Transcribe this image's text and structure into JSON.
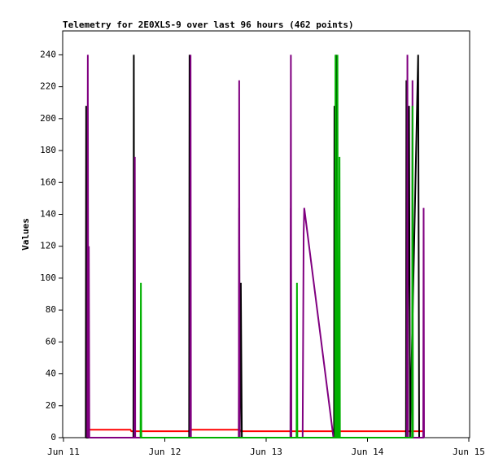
{
  "chart_data": {
    "type": "line",
    "title": "Telemetry for 2E0XLS-9 over last 96 hours (462 points)",
    "y_label": "Values",
    "xlim": [
      -0.008,
      4.008
    ],
    "xticks": [
      {
        "value": 0,
        "label": "Jun 11"
      },
      {
        "value": 1,
        "label": "Jun 12"
      },
      {
        "value": 2,
        "label": "Jun 13"
      },
      {
        "value": 3,
        "label": "Jun 14"
      },
      {
        "value": 4,
        "label": "Jun 15"
      }
    ],
    "ylim": [
      0,
      255
    ],
    "yticks": [
      0,
      20,
      40,
      60,
      80,
      100,
      120,
      140,
      160,
      180,
      200,
      220,
      240
    ],
    "series": [
      {
        "color": "#ff0000",
        "x": [
          0.25,
          0.66,
          0.67,
          1.24,
          1.25,
          1.74,
          1.75,
          3.55
        ],
        "values": [
          5,
          5,
          4,
          4,
          5,
          5,
          4,
          4
        ]
      },
      {
        "color": "#000000",
        "x": [
          0.22,
          0.224,
          0.228,
          0.69,
          0.694,
          0.698,
          1.24,
          1.244,
          1.248,
          1.73,
          1.734,
          1.74,
          1.75,
          1.76,
          2.24,
          2.244,
          2.248,
          2.67,
          2.674,
          2.68,
          2.69,
          2.7,
          3.38,
          3.384,
          3.39,
          3.41,
          3.42,
          3.5,
          3.51
        ],
        "values": [
          0,
          208,
          0,
          0,
          240,
          0,
          0,
          240,
          0,
          0,
          144,
          0,
          97,
          0,
          0,
          144,
          0,
          0,
          208,
          0,
          240,
          0,
          0,
          224,
          0,
          208,
          0,
          240,
          0
        ]
      },
      {
        "color": "#800080",
        "x": [
          0.235,
          0.24,
          0.245,
          0.25,
          0.255,
          0.7,
          0.704,
          0.708,
          1.25,
          1.254,
          1.258,
          1.73,
          1.734,
          1.738,
          2.24,
          2.244,
          2.248,
          2.36,
          2.37,
          2.376,
          2.664,
          3.39,
          3.394,
          3.398,
          3.44,
          3.444,
          3.448,
          3.55,
          3.554,
          3.558
        ],
        "values": [
          0,
          240,
          0,
          120,
          0,
          0,
          176,
          0,
          0,
          240,
          0,
          0,
          224,
          0,
          0,
          240,
          0,
          0,
          128,
          144,
          0,
          0,
          240,
          0,
          0,
          224,
          0,
          0,
          144,
          0
        ]
      },
      {
        "color": "#00b000",
        "x": [
          0.76,
          0.764,
          0.768,
          2.3,
          2.304,
          2.308,
          2.68,
          2.684,
          2.688,
          2.7,
          2.704,
          2.708,
          2.72,
          2.724,
          2.728,
          3.44,
          3.444,
          3.448
        ],
        "values": [
          0,
          97,
          0,
          0,
          97,
          0,
          0,
          240,
          0,
          0,
          240,
          0,
          0,
          176,
          0,
          0,
          208,
          0
        ]
      }
    ]
  }
}
